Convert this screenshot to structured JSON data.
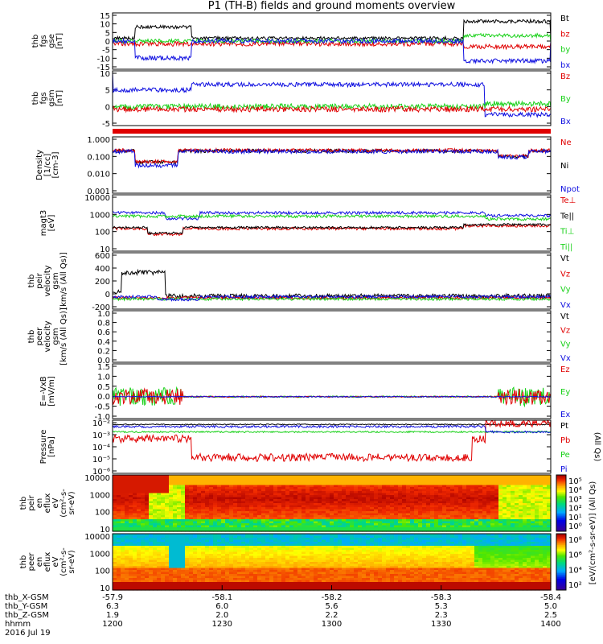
{
  "title": "P1 (TH-B) fields and ground moments overview",
  "colors": {
    "black": "#000000",
    "red": "#e00000",
    "green": "#19d119",
    "blue": "#1010e0"
  },
  "chart_data": [
    {
      "type": "line",
      "ylabel": [
        "thb",
        "fgs",
        "gse",
        "[nT]"
      ],
      "yticks": [
        "15",
        "10",
        "5",
        "0",
        "-5",
        "-10",
        "-15"
      ],
      "ylim": [
        -15,
        15
      ],
      "scale": "linear",
      "legend": [
        {
          "text": "Bt",
          "color": "black"
        },
        {
          "text": "bz",
          "color": "red"
        },
        {
          "text": "by",
          "color": "green"
        },
        {
          "text": "bx",
          "color": "blue"
        }
      ]
    },
    {
      "type": "line",
      "ylabel": [
        "thb",
        "fgs",
        "gsm",
        "[nT]"
      ],
      "yticks": [
        "10",
        "5",
        "0",
        "-5"
      ],
      "ylim": [
        -7,
        10
      ],
      "scale": "linear",
      "legend": [
        {
          "text": "Bz",
          "color": "red"
        },
        {
          "text": "By",
          "color": "green"
        },
        {
          "text": "Bx",
          "color": "blue"
        }
      ]
    },
    {
      "type": "line",
      "ylabel": [
        "Density",
        "[1/cc]",
        "[cm-3]"
      ],
      "yticks": [
        "1.000",
        "0.100",
        "0.010",
        "0.001"
      ],
      "ylim": [
        0.001,
        1
      ],
      "scale": "log",
      "legend": [
        {
          "text": "Ne",
          "color": "red"
        },
        {
          "text": "Ni",
          "color": "black"
        },
        {
          "text": "Npot",
          "color": "blue"
        }
      ]
    },
    {
      "type": "line",
      "ylabel": [
        "magt3",
        "[eV]"
      ],
      "yticks": [
        "10000",
        "1000",
        "100",
        "10"
      ],
      "ylim": [
        10,
        10000
      ],
      "scale": "log",
      "legend": [
        {
          "text": "Te⊥",
          "color": "red"
        },
        {
          "text": "Te||",
          "color": "black"
        },
        {
          "text": "Ti⊥",
          "color": "green"
        },
        {
          "text": "Ti||",
          "color": "green"
        }
      ]
    },
    {
      "type": "line",
      "ylabel": [
        "thb",
        "peir",
        "velocity",
        "gsm",
        "[km/s (All Qs)]"
      ],
      "yticks": [
        "600",
        "400",
        "200",
        "0",
        "-200"
      ],
      "ylim": [
        -200,
        650
      ],
      "scale": "linear",
      "legend": [
        {
          "text": "Vt",
          "color": "black"
        },
        {
          "text": "Vz",
          "color": "red"
        },
        {
          "text": "Vy",
          "color": "green"
        },
        {
          "text": "Vx",
          "color": "blue"
        }
      ]
    },
    {
      "type": "line",
      "ylabel": [
        "thb",
        "peer",
        "velocity",
        "gsm",
        "[km/s (All Qs)]"
      ],
      "yticks": [
        "1.0",
        "0.8",
        "0.6",
        "0.4",
        "0.2",
        "0.0"
      ],
      "ylim": [
        0,
        1
      ],
      "scale": "linear",
      "legend": [
        {
          "text": "Vt",
          "color": "black"
        },
        {
          "text": "Vz",
          "color": "red"
        },
        {
          "text": "Vy",
          "color": "green"
        },
        {
          "text": "Vx",
          "color": "blue"
        }
      ]
    },
    {
      "type": "line",
      "ylabel": [
        "E=-VxB",
        "[mV/m]"
      ],
      "yticks": [
        "1.5",
        "1.0",
        "0.5",
        "0.0",
        "-0.5",
        "-1.0"
      ],
      "ylim": [
        -1.0,
        1.5
      ],
      "scale": "linear",
      "legend": [
        {
          "text": "Ez",
          "color": "red"
        },
        {
          "text": "Ey",
          "color": "green"
        },
        {
          "text": "Ex",
          "color": "blue"
        }
      ]
    },
    {
      "type": "line",
      "ylabel": [
        "Pressure",
        "[nPa]"
      ],
      "yticks": [
        "10⁻²",
        "10⁻³",
        "10⁻⁴",
        "10⁻⁵",
        "10⁻⁶"
      ],
      "ylim": [
        1e-06,
        0.01
      ],
      "scale": "log",
      "legend": [
        {
          "text": "Pt",
          "color": "black"
        },
        {
          "text": "Pb",
          "color": "red"
        },
        {
          "text": "Pe",
          "color": "green"
        },
        {
          "text": "Pi",
          "color": "blue"
        }
      ],
      "side_label": "(All Qs)"
    },
    {
      "type": "heatmap",
      "ylabel": [
        "thb",
        "peir",
        "en",
        "eflux",
        "eV",
        "(cm²-s-",
        "sr-eV)"
      ],
      "yticks": [
        "10000",
        "1000",
        "100",
        "10"
      ],
      "ylim": [
        10,
        20000
      ],
      "scale": "log",
      "colorbar": {
        "ticks": [
          "10⁵",
          "10⁴",
          "10³",
          "10²",
          "10¹",
          "10⁰"
        ],
        "label": "[eV/(cm²-s-sr-eV)] (All Qs)"
      }
    },
    {
      "type": "heatmap",
      "ylabel": [
        "thb",
        "peer",
        "en",
        "eflux",
        "eV",
        "(cm²-s-",
        "sr-eV)"
      ],
      "yticks": [
        "10000",
        "1000",
        "100",
        "10"
      ],
      "ylim": [
        10,
        20000
      ],
      "scale": "log",
      "colorbar": {
        "ticks": [
          "10⁸",
          "10⁶",
          "10⁴",
          "10²"
        ],
        "label": "[eV/(cm²-s-sr-eV)]"
      }
    }
  ],
  "xaxis": {
    "rows": [
      {
        "name": "thb_X-GSM",
        "values": [
          "-57.9",
          "-58.1",
          "-58.2",
          "-58.3",
          "-58.4"
        ]
      },
      {
        "name": "thb_Y-GSM",
        "values": [
          "6.3",
          "6.0",
          "5.6",
          "5.3",
          "5.0"
        ]
      },
      {
        "name": "thb_Z-GSM",
        "values": [
          "1.9",
          "2.0",
          "2.2",
          "2.3",
          "2.5"
        ]
      },
      {
        "name": "hhmm",
        "values": [
          "1200",
          "1230",
          "1300",
          "1330",
          "1400"
        ]
      }
    ],
    "date": "2016 Jul 19"
  }
}
